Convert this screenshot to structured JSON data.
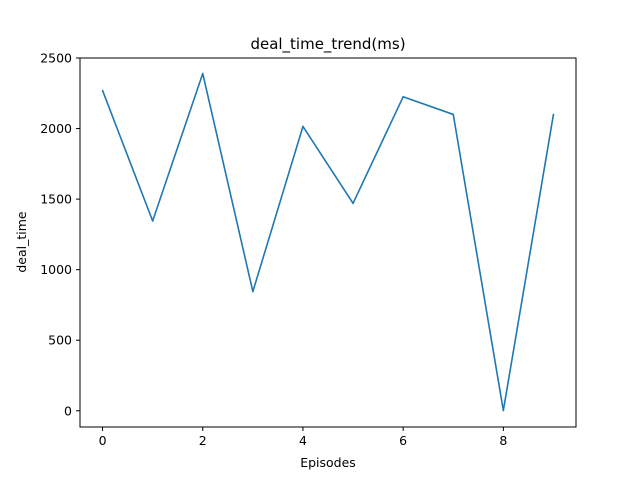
{
  "chart_data": {
    "type": "line",
    "title": "deal_time_trend(ms)",
    "xlabel": "Episodes",
    "ylabel": "deal_time",
    "x": [
      0,
      1,
      2,
      3,
      4,
      5,
      6,
      7,
      8,
      9
    ],
    "series": [
      {
        "values": [
          2270,
          1345,
          2390,
          845,
          2015,
          1470,
          2225,
          2100,
          2,
          2100
        ],
        "color": "#1f77b4"
      }
    ],
    "xlim": [
      -0.45,
      9.45
    ],
    "ylim": [
      -115,
      2500
    ],
    "xticks": [
      0,
      2,
      4,
      6,
      8
    ],
    "yticks": [
      0,
      500,
      1000,
      1500,
      2000,
      2500
    ],
    "grid": false,
    "legend": false
  }
}
